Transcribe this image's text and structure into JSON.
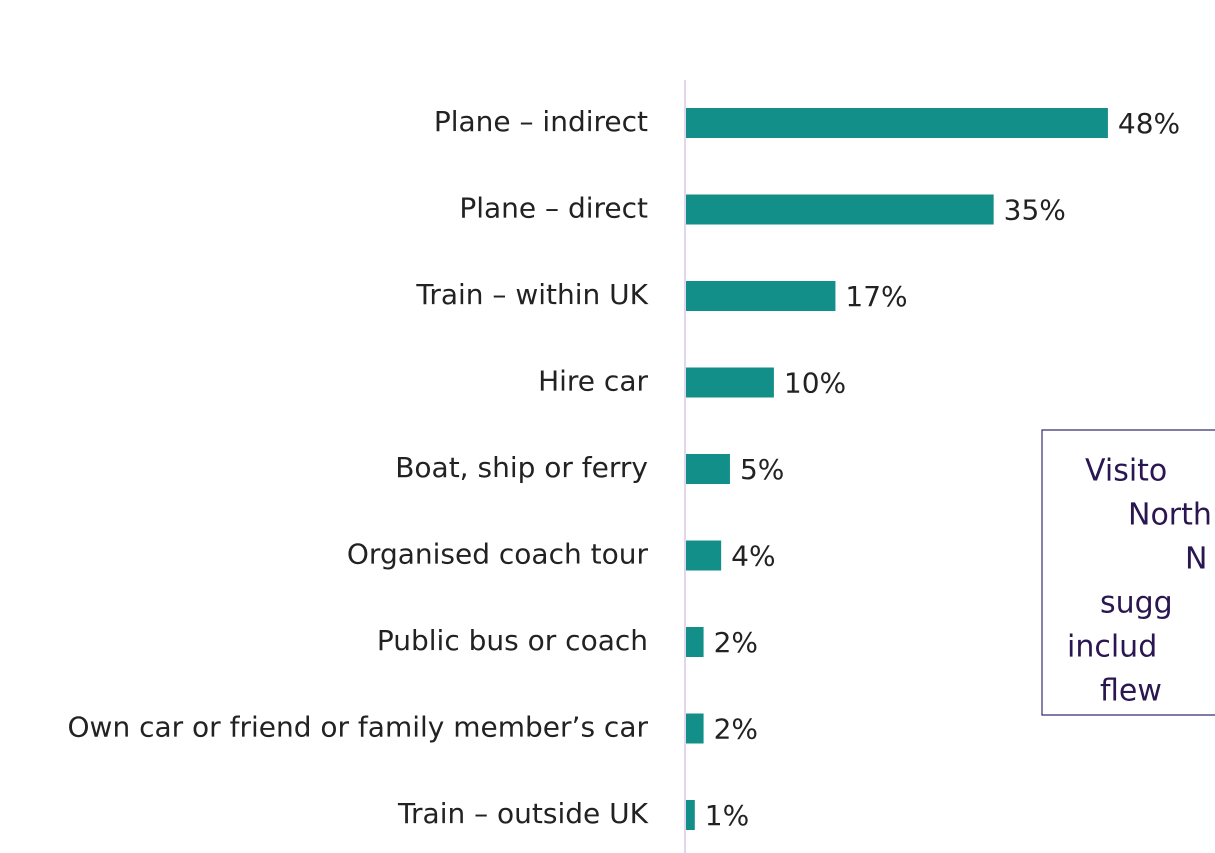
{
  "chart_data": {
    "type": "barh",
    "categories": [
      "Plane – indirect",
      "Plane – direct",
      "Train – within UK",
      "Hire car",
      "Boat, ship or ferry",
      "Organised coach tour",
      "Public bus or coach",
      "Own car or friend or family member’s car",
      "Train – outside UK"
    ],
    "values": [
      48,
      35,
      17,
      10,
      5,
      4,
      2,
      2,
      1
    ],
    "value_labels": [
      "48%",
      "35%",
      "17%",
      "10%",
      "5%",
      "4%",
      "2%",
      "2%",
      "1%"
    ],
    "color": "#138f8a",
    "annotation": [
      "Visito",
      "North",
      "N",
      "sugg",
      "includ",
      "flew"
    ]
  }
}
